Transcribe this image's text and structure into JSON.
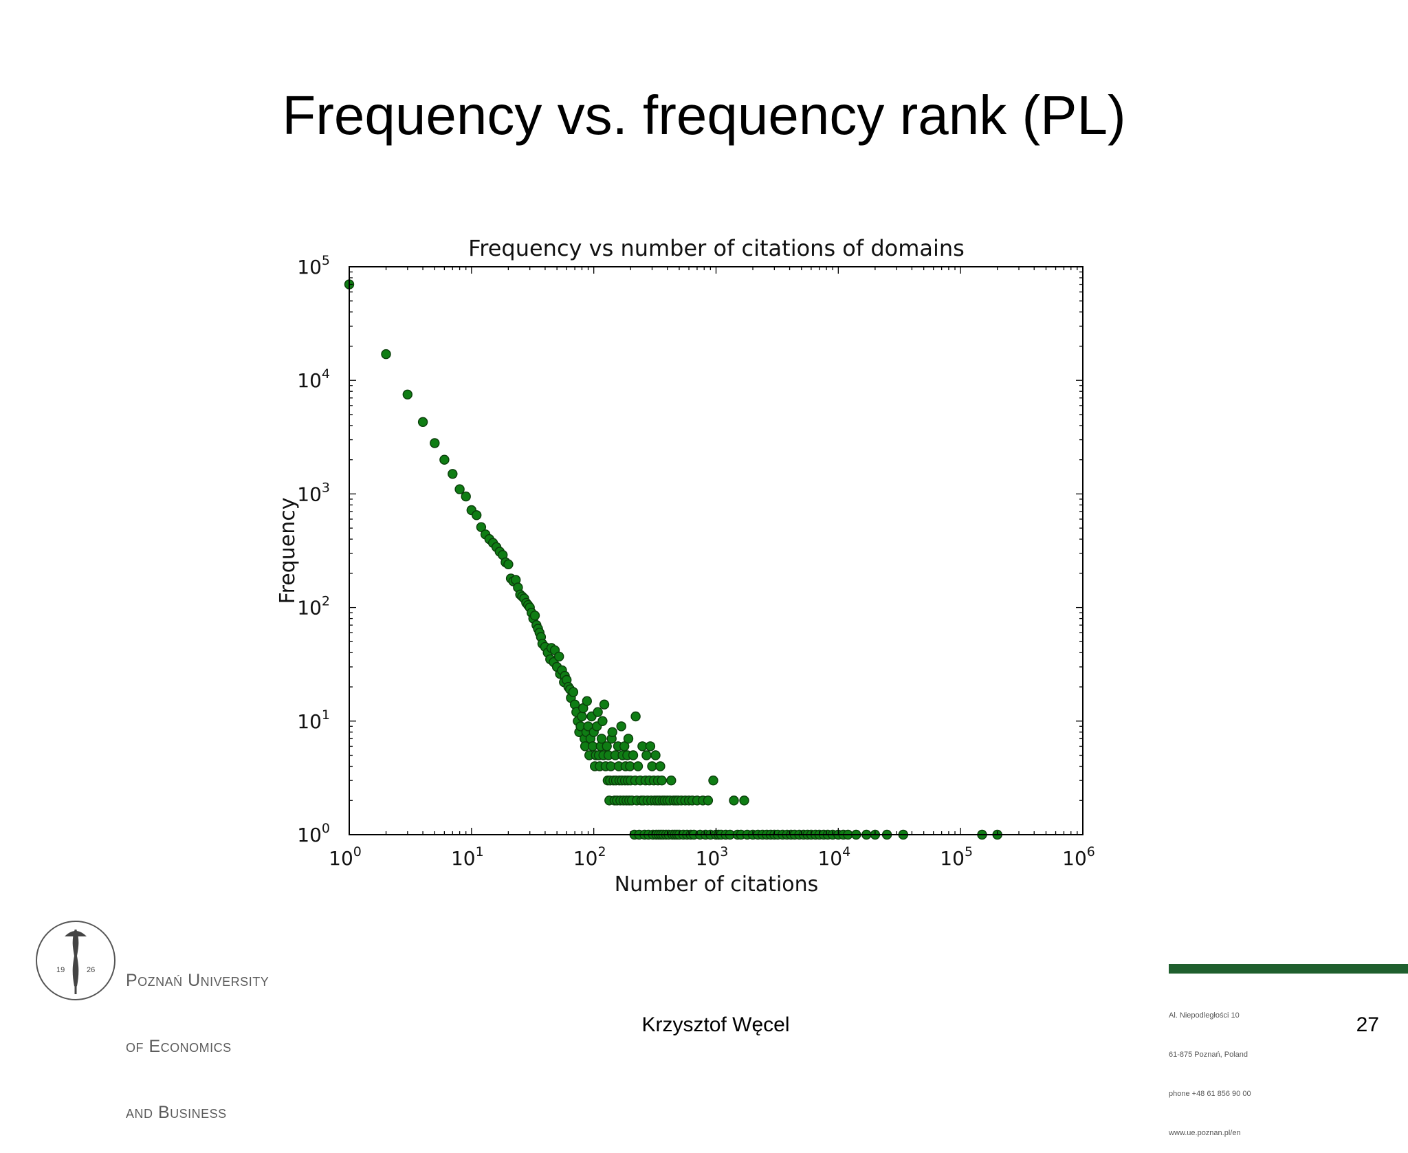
{
  "slide": {
    "title": "Frequency vs. frequency rank (PL)",
    "author": "Krzysztof Węcel",
    "page_number": "27"
  },
  "logo": {
    "lines": [
      "Poznań University",
      "of Economics",
      "and Business"
    ],
    "emblem_text": [
      "19",
      "26"
    ]
  },
  "address": {
    "lines": [
      "Al. Niepodległości 10",
      "61-875 Poznań, Poland",
      "phone +48 61 856 90 00",
      "www.ue.poznan.pl/en"
    ]
  },
  "colors": {
    "marker_fill": "#0f7d14",
    "marker_edge": "#0a3d0a",
    "accent_bar": "#1f5f2e"
  },
  "chart_data": {
    "type": "scatter",
    "title": "Frequency vs number of citations of domains",
    "xlabel": "Number of citations",
    "ylabel": "Frequency",
    "xscale": "log",
    "yscale": "log",
    "xlim": [
      1,
      1000000
    ],
    "ylim": [
      1,
      100000
    ],
    "xticks": [
      {
        "base": "10",
        "exp": "0",
        "value": 1
      },
      {
        "base": "10",
        "exp": "1",
        "value": 10
      },
      {
        "base": "10",
        "exp": "2",
        "value": 100
      },
      {
        "base": "10",
        "exp": "3",
        "value": 1000
      },
      {
        "base": "10",
        "exp": "4",
        "value": 10000
      },
      {
        "base": "10",
        "exp": "5",
        "value": 100000
      },
      {
        "base": "10",
        "exp": "6",
        "value": 1000000
      }
    ],
    "yticks": [
      {
        "base": "10",
        "exp": "0",
        "value": 1
      },
      {
        "base": "10",
        "exp": "1",
        "value": 10
      },
      {
        "base": "10",
        "exp": "2",
        "value": 100
      },
      {
        "base": "10",
        "exp": "3",
        "value": 1000
      },
      {
        "base": "10",
        "exp": "4",
        "value": 10000
      },
      {
        "base": "10",
        "exp": "5",
        "value": 100000
      }
    ],
    "grid": false,
    "legend": "none",
    "points": [
      [
        1,
        70000
      ],
      [
        2,
        17000
      ],
      [
        3,
        7500
      ],
      [
        4,
        4300
      ],
      [
        5,
        2800
      ],
      [
        6,
        2000
      ],
      [
        7,
        1500
      ],
      [
        8,
        1100
      ],
      [
        9,
        950
      ],
      [
        10,
        720
      ],
      [
        11,
        650
      ],
      [
        12,
        510
      ],
      [
        13,
        440
      ],
      [
        14,
        400
      ],
      [
        15,
        370
      ],
      [
        16,
        340
      ],
      [
        17,
        310
      ],
      [
        18,
        290
      ],
      [
        19,
        250
      ],
      [
        20,
        240
      ],
      [
        21,
        180
      ],
      [
        22,
        170
      ],
      [
        23,
        175
      ],
      [
        24,
        150
      ],
      [
        25,
        130
      ],
      [
        26,
        125
      ],
      [
        27,
        120
      ],
      [
        28,
        110
      ],
      [
        29,
        105
      ],
      [
        30,
        100
      ],
      [
        31,
        90
      ],
      [
        32,
        80
      ],
      [
        33,
        85
      ],
      [
        34,
        70
      ],
      [
        35,
        65
      ],
      [
        36,
        60
      ],
      [
        37,
        55
      ],
      [
        38,
        48
      ],
      [
        40,
        45
      ],
      [
        42,
        40
      ],
      [
        44,
        35
      ],
      [
        45,
        44
      ],
      [
        47,
        33
      ],
      [
        48,
        42
      ],
      [
        50,
        30
      ],
      [
        52,
        37
      ],
      [
        53,
        26
      ],
      [
        55,
        28
      ],
      [
        57,
        22
      ],
      [
        58,
        25
      ],
      [
        60,
        23
      ],
      [
        62,
        20
      ],
      [
        64,
        19
      ],
      [
        65,
        16
      ],
      [
        68,
        18
      ],
      [
        70,
        14
      ],
      [
        72,
        12
      ],
      [
        74,
        10
      ],
      [
        76,
        8
      ],
      [
        78,
        9
      ],
      [
        80,
        11
      ],
      [
        82,
        13
      ],
      [
        84,
        7
      ],
      [
        85,
        6
      ],
      [
        87,
        8
      ],
      [
        88,
        15
      ],
      [
        90,
        9
      ],
      [
        92,
        5
      ],
      [
        94,
        7
      ],
      [
        96,
        11
      ],
      [
        98,
        6
      ],
      [
        100,
        8
      ],
      [
        102,
        4
      ],
      [
        104,
        5
      ],
      [
        106,
        9
      ],
      [
        108,
        12
      ],
      [
        110,
        5
      ],
      [
        112,
        4
      ],
      [
        114,
        6
      ],
      [
        116,
        7
      ],
      [
        118,
        10
      ],
      [
        120,
        5
      ],
      [
        122,
        14
      ],
      [
        125,
        4
      ],
      [
        128,
        6
      ],
      [
        130,
        3
      ],
      [
        132,
        5
      ],
      [
        134,
        2
      ],
      [
        136,
        3
      ],
      [
        138,
        4
      ],
      [
        140,
        7
      ],
      [
        142,
        8
      ],
      [
        145,
        3
      ],
      [
        148,
        2
      ],
      [
        150,
        5
      ],
      [
        152,
        3
      ],
      [
        155,
        2
      ],
      [
        158,
        6
      ],
      [
        160,
        4
      ],
      [
        162,
        3
      ],
      [
        165,
        2
      ],
      [
        168,
        9
      ],
      [
        170,
        3
      ],
      [
        172,
        5
      ],
      [
        175,
        2
      ],
      [
        178,
        6
      ],
      [
        180,
        3
      ],
      [
        182,
        4
      ],
      [
        185,
        2
      ],
      [
        188,
        5
      ],
      [
        190,
        3
      ],
      [
        192,
        7
      ],
      [
        195,
        2
      ],
      [
        198,
        4
      ],
      [
        200,
        3
      ],
      [
        205,
        2
      ],
      [
        210,
        5
      ],
      [
        215,
        1
      ],
      [
        218,
        3
      ],
      [
        220,
        11
      ],
      [
        225,
        2
      ],
      [
        230,
        4
      ],
      [
        235,
        1
      ],
      [
        240,
        3
      ],
      [
        245,
        2
      ],
      [
        250,
        6
      ],
      [
        255,
        2
      ],
      [
        260,
        1
      ],
      [
        265,
        3
      ],
      [
        270,
        5
      ],
      [
        275,
        2
      ],
      [
        280,
        1
      ],
      [
        285,
        3
      ],
      [
        290,
        6
      ],
      [
        295,
        2
      ],
      [
        300,
        4
      ],
      [
        305,
        1
      ],
      [
        310,
        3
      ],
      [
        315,
        2
      ],
      [
        320,
        5
      ],
      [
        325,
        1
      ],
      [
        330,
        2
      ],
      [
        335,
        3
      ],
      [
        340,
        1
      ],
      [
        345,
        2
      ],
      [
        350,
        4
      ],
      [
        355,
        1
      ],
      [
        360,
        3
      ],
      [
        365,
        2
      ],
      [
        370,
        1
      ],
      [
        380,
        2
      ],
      [
        390,
        1
      ],
      [
        400,
        2
      ],
      [
        410,
        1
      ],
      [
        420,
        2
      ],
      [
        430,
        3
      ],
      [
        440,
        1
      ],
      [
        450,
        2
      ],
      [
        460,
        1
      ],
      [
        470,
        2
      ],
      [
        480,
        1
      ],
      [
        490,
        2
      ],
      [
        500,
        1
      ],
      [
        520,
        2
      ],
      [
        540,
        1
      ],
      [
        560,
        2
      ],
      [
        580,
        1
      ],
      [
        600,
        2
      ],
      [
        620,
        1
      ],
      [
        640,
        2
      ],
      [
        660,
        1
      ],
      [
        700,
        2
      ],
      [
        740,
        1
      ],
      [
        780,
        2
      ],
      [
        820,
        1
      ],
      [
        860,
        2
      ],
      [
        900,
        1
      ],
      [
        950,
        3
      ],
      [
        1000,
        1
      ],
      [
        1050,
        1
      ],
      [
        1100,
        1
      ],
      [
        1200,
        1
      ],
      [
        1300,
        1
      ],
      [
        1400,
        2
      ],
      [
        1500,
        1
      ],
      [
        1600,
        1
      ],
      [
        1700,
        2
      ],
      [
        1800,
        1
      ],
      [
        2000,
        1
      ],
      [
        2200,
        1
      ],
      [
        2400,
        1
      ],
      [
        2600,
        1
      ],
      [
        2800,
        1
      ],
      [
        3000,
        1
      ],
      [
        3200,
        1
      ],
      [
        3500,
        1
      ],
      [
        3800,
        1
      ],
      [
        4100,
        1
      ],
      [
        4400,
        1
      ],
      [
        4800,
        1
      ],
      [
        5200,
        1
      ],
      [
        5600,
        1
      ],
      [
        6000,
        1
      ],
      [
        6500,
        1
      ],
      [
        7000,
        1
      ],
      [
        7600,
        1
      ],
      [
        8200,
        1
      ],
      [
        9000,
        1
      ],
      [
        10000,
        1
      ],
      [
        11000,
        1
      ],
      [
        12000,
        1
      ],
      [
        14000,
        1
      ],
      [
        17000,
        1
      ],
      [
        20000,
        1
      ],
      [
        25000,
        1
      ],
      [
        34000,
        1
      ],
      [
        150000,
        1
      ],
      [
        200000,
        1
      ]
    ]
  }
}
